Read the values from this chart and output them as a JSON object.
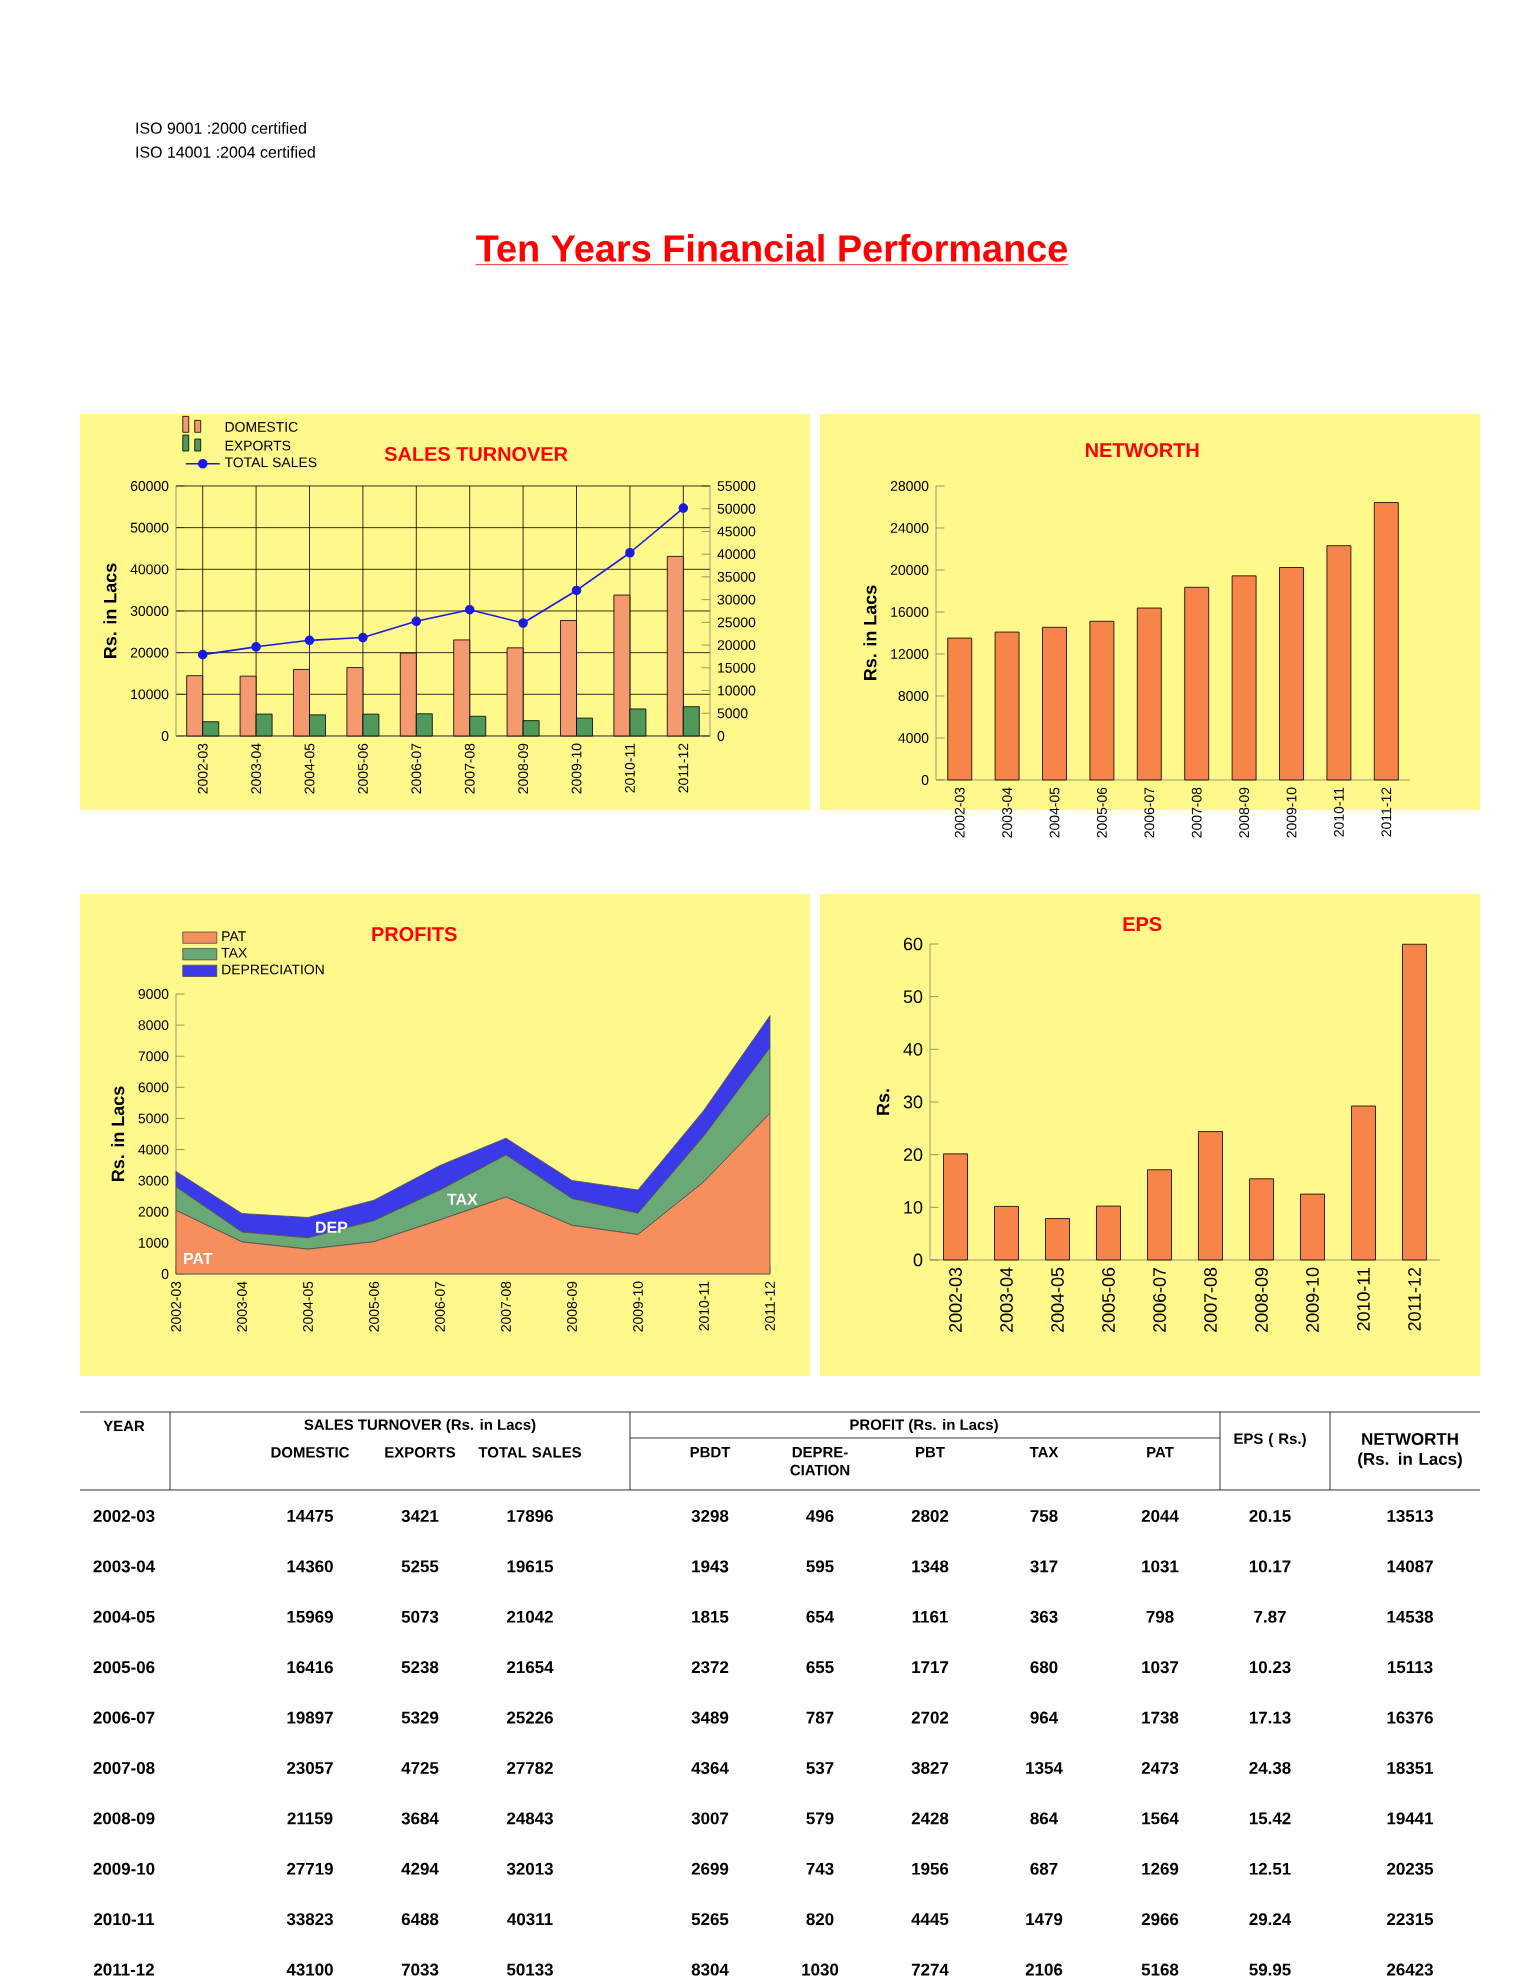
{
  "chart_data": [
    {
      "type": "other",
      "title": "Ten Years Financial Performance",
      "annotations": [
        "ISO   9001 :2000 certified",
        "ISO 14001 :2004 certified"
      ]
    },
    {
      "type": "bar",
      "title": "SALES TURNOVER",
      "ylabel": "Rs. in Lacs",
      "categories": [
        "2002-03",
        "2003-04",
        "2004-05",
        "2005-06",
        "2006-07",
        "2007-08",
        "2008-09",
        "2009-10",
        "2010-11",
        "2011-12"
      ],
      "series": [
        {
          "name": "DOMESTIC",
          "color": "#f59a6e",
          "values": [
            14475,
            14360,
            15969,
            16416,
            19897,
            23057,
            21159,
            27719,
            33823,
            43100
          ]
        },
        {
          "name": "EXPORTS",
          "color": "#4f9a5a",
          "values": [
            3421,
            5255,
            5073,
            5238,
            5329,
            4725,
            3684,
            4294,
            6488,
            7033
          ]
        },
        {
          "name": "TOTAL SALES",
          "type": "line",
          "axis": "y2",
          "marker": "circle",
          "color": "#1a1ae0",
          "values": [
            17896,
            19615,
            21042,
            21654,
            25226,
            27782,
            24843,
            32013,
            40311,
            50133
          ]
        }
      ],
      "ylim": [
        0,
        60000
      ],
      "yticks": [
        0,
        10000,
        20000,
        30000,
        40000,
        50000,
        60000
      ],
      "y2lim": [
        0,
        55000
      ],
      "y2ticks": [
        0,
        5000,
        10000,
        15000,
        20000,
        25000,
        30000,
        35000,
        40000,
        45000,
        50000,
        55000
      ],
      "grid": true,
      "legend": "top left"
    },
    {
      "type": "bar",
      "title": "NETWORTH",
      "ylabel": "Rs. in Lacs",
      "categories": [
        "2002-03",
        "2003-04",
        "2004-05",
        "2005-06",
        "2006-07",
        "2007-08",
        "2008-09",
        "2009-10",
        "2010-11",
        "2011-12"
      ],
      "series": [
        {
          "color": "#f7854a",
          "values": [
            13513,
            14087,
            14538,
            15113,
            16376,
            18351,
            19441,
            20235,
            22315,
            26423
          ]
        }
      ],
      "ylim": [
        0,
        28000
      ],
      "yticks": [
        0,
        4000,
        8000,
        12000,
        16000,
        20000,
        24000,
        28000
      ]
    },
    {
      "type": "area",
      "title": "PROFITS",
      "ylabel": "Rs. in Lacs",
      "stacked": true,
      "categories": [
        "2002-03",
        "2003-04",
        "2004-05",
        "2005-06",
        "2006-07",
        "2007-08",
        "2008-09",
        "2009-10",
        "2010-11",
        "2011-12"
      ],
      "series": [
        {
          "name": "PAT",
          "color": "#f5905e",
          "values": [
            2044,
            1031,
            798,
            1037,
            1738,
            2473,
            1564,
            1269,
            2966,
            5168
          ]
        },
        {
          "name": "TAX",
          "color": "#6aa876",
          "values": [
            758,
            317,
            363,
            680,
            964,
            1354,
            864,
            687,
            1479,
            2106
          ]
        },
        {
          "name": "DEPRECIATION",
          "color": "#3a3ae8",
          "values": [
            496,
            595,
            654,
            655,
            787,
            537,
            579,
            743,
            820,
            1030
          ]
        }
      ],
      "ylim": [
        0,
        9000
      ],
      "yticks": [
        0,
        1000,
        2000,
        3000,
        4000,
        5000,
        6000,
        7000,
        8000,
        9000
      ],
      "legend": "top left",
      "annotations": [
        {
          "text": "PAT",
          "x": "2002-03",
          "y": 500
        },
        {
          "text": "DEP",
          "x": "2004-05",
          "y": 1500
        },
        {
          "text": "TAX",
          "x": "2006-07",
          "y": 2400
        }
      ]
    },
    {
      "type": "bar",
      "title": "EPS",
      "ylabel": "Rs.",
      "categories": [
        "2002-03",
        "2003-04",
        "2004-05",
        "2005-06",
        "2006-07",
        "2007-08",
        "2008-09",
        "2009-10",
        "2010-11",
        "2011-12"
      ],
      "series": [
        {
          "color": "#f7854a",
          "values": [
            20.15,
            10.17,
            7.87,
            10.23,
            17.13,
            24.38,
            15.42,
            12.51,
            29.24,
            59.95
          ]
        }
      ],
      "ylim": [
        0,
        60
      ],
      "yticks": [
        0,
        10,
        20,
        30,
        40,
        50,
        60
      ]
    },
    {
      "type": "other",
      "xlabel": "YEAR",
      "data_labels": true,
      "annotations": [
        "SALES TURNOVER (Rs. in Lacs)",
        "PROFIT (Rs. in Lacs)"
      ],
      "categories": [
        "2002-03",
        "2003-04",
        "2004-05",
        "2005-06",
        "2006-07",
        "2007-08",
        "2008-09",
        "2009-10",
        "2010-11",
        "2011-12"
      ],
      "series": [
        {
          "name": "DOMESTIC",
          "values": [
            14475,
            14360,
            15969,
            16416,
            19897,
            23057,
            21159,
            27719,
            33823,
            43100
          ]
        },
        {
          "name": "EXPORTS",
          "values": [
            3421,
            5255,
            5073,
            5238,
            5329,
            4725,
            3684,
            4294,
            6488,
            7033
          ]
        },
        {
          "name": "TOTAL SALES",
          "values": [
            17896,
            19615,
            21042,
            21654,
            25226,
            27782,
            24843,
            32013,
            40311,
            50133
          ]
        },
        {
          "name": "PBDT",
          "values": [
            3298,
            1943,
            1815,
            2372,
            3489,
            4364,
            3007,
            2699,
            5265,
            8304
          ]
        },
        {
          "name": "DEPRE-CIATION",
          "values": [
            496,
            595,
            654,
            655,
            787,
            537,
            579,
            743,
            820,
            1030
          ]
        },
        {
          "name": "PBT",
          "values": [
            2802,
            1348,
            1161,
            1717,
            2702,
            3827,
            2428,
            1956,
            4445,
            7274
          ]
        },
        {
          "name": "TAX",
          "values": [
            758,
            317,
            363,
            680,
            964,
            1354,
            864,
            687,
            1479,
            2106
          ]
        },
        {
          "name": "PAT",
          "values": [
            2044,
            1031,
            798,
            1037,
            1738,
            2473,
            1564,
            1269,
            2966,
            5168
          ]
        },
        {
          "name": "EPS ( Rs.)",
          "values": [
            20.15,
            10.17,
            7.87,
            10.23,
            17.13,
            24.38,
            15.42,
            12.51,
            29.24,
            59.95
          ]
        },
        {
          "name": "NETWORTH (Rs. in Lacs)",
          "values": [
            13513,
            14087,
            14538,
            15113,
            16376,
            18351,
            19441,
            20235,
            22315,
            26423
          ]
        }
      ]
    }
  ]
}
